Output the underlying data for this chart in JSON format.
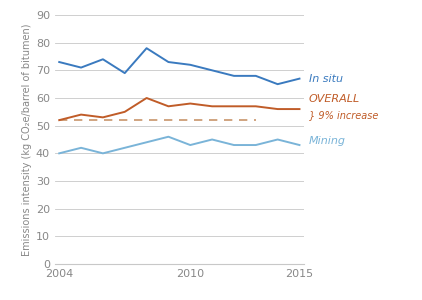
{
  "years": [
    2004,
    2005,
    2006,
    2007,
    2008,
    2009,
    2010,
    2011,
    2012,
    2013,
    2014,
    2015
  ],
  "in_situ": [
    73,
    71,
    74,
    69,
    78,
    73,
    72,
    70,
    68,
    68,
    65,
    67
  ],
  "overall": [
    52,
    54,
    53,
    55,
    60,
    57,
    58,
    57,
    57,
    57,
    56,
    56
  ],
  "mining": [
    40,
    42,
    40,
    42,
    44,
    46,
    43,
    45,
    43,
    43,
    45,
    43
  ],
  "dashed_level": 52,
  "in_situ_color": "#3a7abf",
  "overall_color": "#c05c28",
  "mining_color": "#7ab4d8",
  "dashed_color": "#c8956b",
  "grid_color": "#c8c8c8",
  "ylabel": "Emissions intensity (kg CO₂e/barrel of bitumen)",
  "ylim": [
    0,
    90
  ],
  "yticks": [
    0,
    10,
    20,
    30,
    40,
    50,
    60,
    70,
    80,
    90
  ],
  "xlim_min": 2004,
  "xlim_max": 2015,
  "xticks": [
    2004,
    2010,
    2015
  ],
  "xtick_labels": [
    "2004",
    "2010",
    "2015"
  ],
  "label_in_situ": "In situ",
  "label_overall": "OVERALL",
  "label_mining": "Mining",
  "label_increase": "} 9% increase",
  "background_color": "#ffffff",
  "text_color_axis": "#888888"
}
